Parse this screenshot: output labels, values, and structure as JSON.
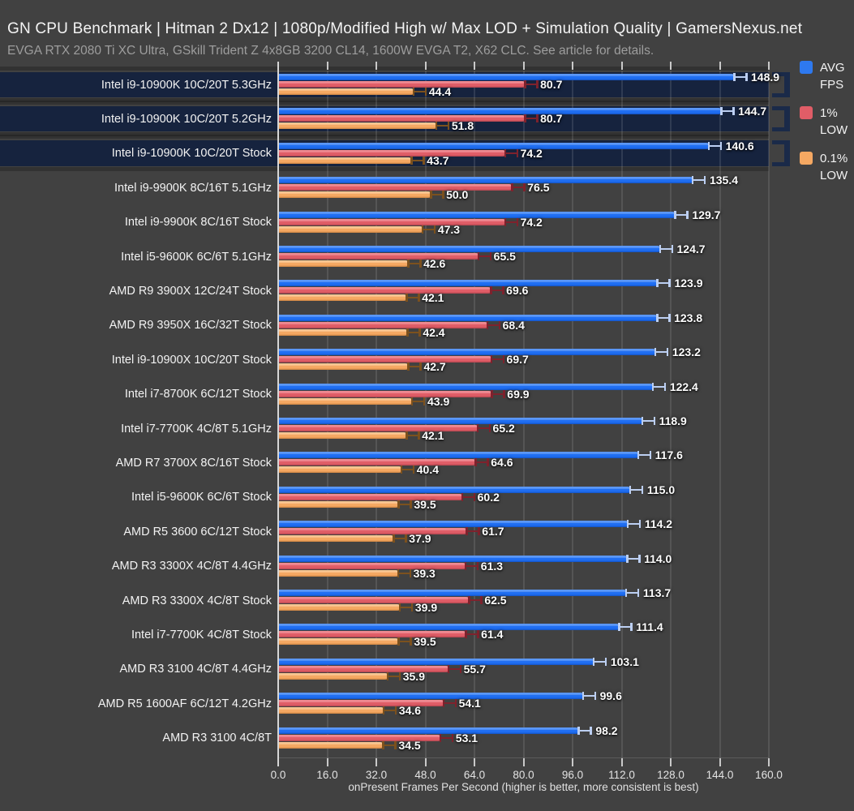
{
  "header": {
    "title": "GN CPU Benchmark | Hitman 2 Dx12 | 1080p/Modified High w/ Max LOD + Simulation Quality | GamersNexus.net",
    "subtitle": "EVGA RTX 2080 Ti XC Ultra, GSkill Trident Z 4x8GB 3200 CL14, 1600W EVGA T2, X62 CLC. See article for details."
  },
  "legend": {
    "items": [
      {
        "name": "avg-fps",
        "line1": "AVG",
        "line2": "FPS",
        "color": "#2e79ef"
      },
      {
        "name": "one-percent-low",
        "line1": "1%",
        "line2": "LOW",
        "color": "#e05d67"
      },
      {
        "name": "point-one-percent-low",
        "line1": "0.1%",
        "line2": "LOW",
        "color": "#f5a862"
      }
    ]
  },
  "chart_data": {
    "type": "bar",
    "orientation": "horizontal",
    "title": "GN CPU Benchmark | Hitman 2 Dx12 | 1080p/Modified High w/ Max LOD + Simulation Quality | GamersNexus.net",
    "xlabel": "onPresent Frames Per Second (higher is better, more consistent is best)",
    "xlim": [
      0,
      160
    ],
    "tick_step": 16,
    "tick_labels": [
      "0.0",
      "16.0",
      "32.0",
      "48.0",
      "64.0",
      "80.0",
      "96.0",
      "112.0",
      "128.0",
      "144.0",
      "160.0"
    ],
    "grid": true,
    "legend_position": "top-right",
    "series_names": [
      "AVG FPS",
      "1% LOW",
      "0.1% LOW"
    ],
    "categories": [
      "Intel i9-10900K 10C/20T 5.3GHz",
      "Intel i9-10900K 10C/20T 5.2GHz",
      "Intel i9-10900K 10C/20T Stock",
      "Intel i9-9900K 8C/16T 5.1GHz",
      "Intel i9-9900K 8C/16T Stock",
      "Intel i5-9600K 6C/6T 5.1GHz",
      "AMD R9 3900X 12C/24T Stock",
      "AMD R9 3950X 16C/32T Stock",
      "Intel i9-10900X 10C/20T Stock",
      "Intel i7-8700K 6C/12T Stock",
      "Intel i7-7700K 4C/8T 5.1GHz",
      "AMD R7 3700X 8C/16T Stock",
      "Intel i5-9600K 6C/6T Stock",
      "AMD R5 3600 6C/12T Stock",
      "AMD R3 3300X 4C/8T 4.4GHz",
      "AMD R3 3300X 4C/8T Stock",
      "Intel i7-7700K 4C/8T Stock",
      "AMD R3 3100 4C/8T 4.4GHz",
      "AMD R5 1600AF 6C/12T 4.2GHz",
      "AMD R3 3100 4C/8T"
    ],
    "series": [
      {
        "name": "AVG FPS",
        "values": [
          148.9,
          144.7,
          140.6,
          135.4,
          129.7,
          124.7,
          123.9,
          123.8,
          123.2,
          122.4,
          118.9,
          117.6,
          115.0,
          114.2,
          114.0,
          113.7,
          111.4,
          103.1,
          99.6,
          98.2
        ]
      },
      {
        "name": "1% LOW",
        "values": [
          80.7,
          80.7,
          74.2,
          76.5,
          74.2,
          65.5,
          69.6,
          68.4,
          69.7,
          69.9,
          65.2,
          64.6,
          60.2,
          61.7,
          61.3,
          62.5,
          61.4,
          55.7,
          54.1,
          53.1
        ]
      },
      {
        "name": "0.1% LOW",
        "values": [
          44.4,
          51.8,
          43.7,
          50.0,
          47.3,
          42.6,
          42.1,
          42.4,
          42.7,
          43.9,
          42.1,
          40.4,
          39.5,
          37.9,
          39.3,
          39.9,
          39.5,
          35.9,
          34.6,
          34.5
        ]
      }
    ],
    "highlighted_rows": [
      0,
      1,
      2
    ]
  },
  "colors": {
    "background": "#414141",
    "highlight_band": "#16233e",
    "avg": {
      "main": "#1f6ef2",
      "light": "#5b97f7",
      "dark": "#1353c4",
      "err": "#bccff2"
    },
    "low1": {
      "main": "#e05d67",
      "light": "#ee8a92",
      "dark": "#b2444f",
      "err": "#7e222d"
    },
    "low01": {
      "main": "#f5a862",
      "light": "#f9c591",
      "dark": "#cd8440",
      "err": "#7c511e"
    }
  }
}
